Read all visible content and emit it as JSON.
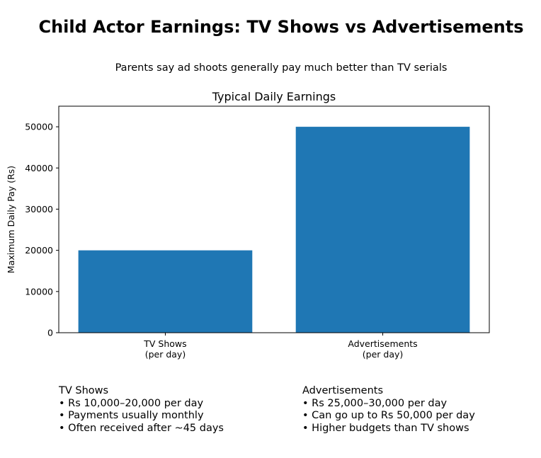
{
  "header": {
    "title": "Child Actor Earnings: TV Shows vs Advertisements",
    "subtitle": "Parents say ad shoots generally pay much better than TV serials"
  },
  "chart_data": {
    "type": "bar",
    "title": "Typical Daily Earnings",
    "xlabel": "",
    "ylabel": "Maximum Daily Pay (Rs)",
    "categories": [
      [
        "TV Shows",
        "(per day)"
      ],
      [
        "Advertisements",
        "(per day)"
      ]
    ],
    "values": [
      20000,
      50000
    ],
    "ylim": [
      0,
      55000
    ],
    "yticks": [
      0,
      10000,
      20000,
      30000,
      40000,
      50000
    ],
    "bar_color": "#1f77b4",
    "grid": false,
    "legend": "none"
  },
  "notes": {
    "tv": {
      "heading": "TV Shows",
      "lines": [
        "• Rs 10,000–20,000 per day",
        "• Payments usually monthly",
        "• Often received after ~45 days"
      ]
    },
    "ads": {
      "heading": "Advertisements",
      "lines": [
        "• Rs 25,000–30,000 per day",
        "• Can go up to Rs 50,000 per day",
        "• Higher budgets than TV shows"
      ]
    }
  }
}
